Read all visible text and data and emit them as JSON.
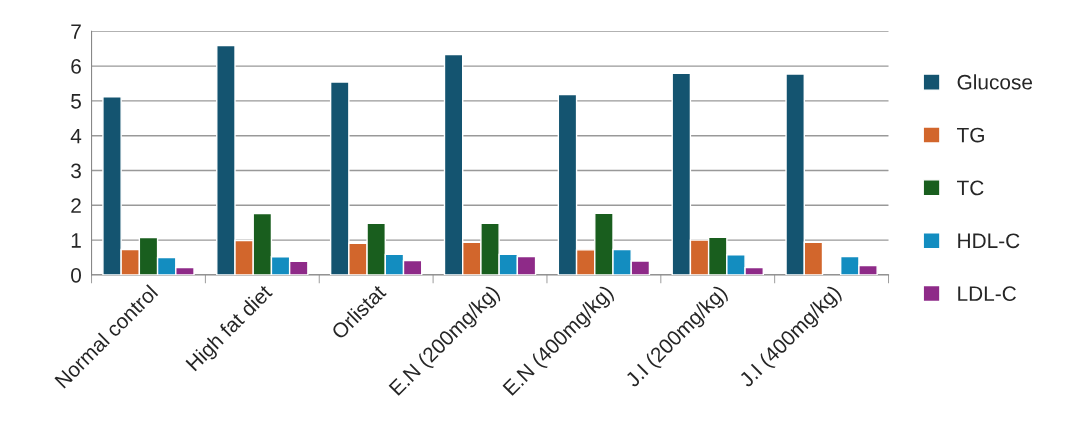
{
  "chart_data": {
    "type": "bar",
    "categories": [
      "Normal control",
      "High fat diet",
      "Orlistat",
      "E.N (200mg/kg)",
      "E.N (400mg/kg)",
      "J.I (200mg/kg)",
      "J.I (400mg/kg)"
    ],
    "series": [
      {
        "name": "Glucose",
        "color": "#145470",
        "values": [
          5.12,
          6.59,
          5.54,
          6.33,
          5.18,
          5.79,
          5.77
        ]
      },
      {
        "name": "TG",
        "color": "#d2662c",
        "values": [
          0.73,
          0.99,
          0.91,
          0.94,
          0.72,
          1.0,
          0.94
        ]
      },
      {
        "name": "TC",
        "color": "#195e1e",
        "values": [
          1.07,
          1.76,
          1.48,
          1.48,
          1.77,
          1.08,
          null
        ]
      },
      {
        "name": "HDL-C",
        "color": "#138dc0",
        "values": [
          0.5,
          0.52,
          0.59,
          0.59,
          0.73,
          0.58,
          0.53
        ]
      },
      {
        "name": "LDL-C",
        "color": "#8e2a88",
        "values": [
          0.21,
          0.39,
          0.41,
          0.53,
          0.4,
          0.21,
          0.27
        ]
      }
    ],
    "ylim": [
      0,
      7
    ],
    "yticks": [
      0,
      1,
      2,
      3,
      4,
      5,
      6,
      7
    ],
    "grid": "y",
    "legend": "right"
  }
}
